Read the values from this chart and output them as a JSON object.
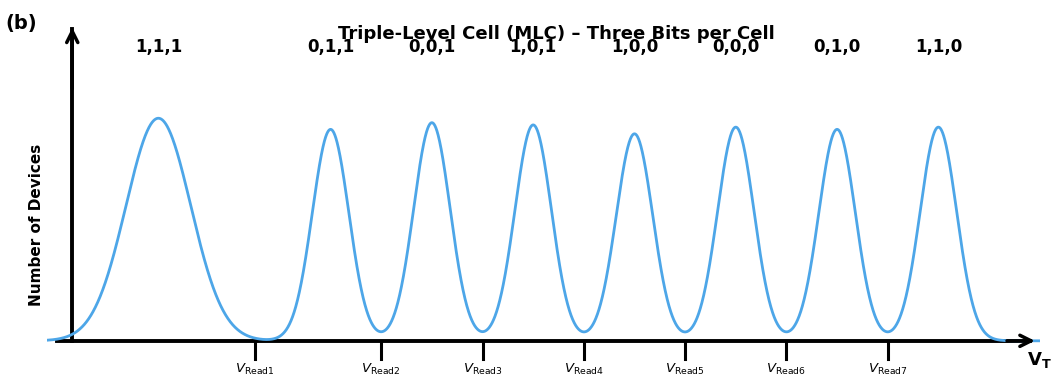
{
  "title": "Triple-Level Cell (MLC) – Three Bits per Cell",
  "ylabel": "Number of Devices",
  "xlabel": "V_T",
  "bit_labels": [
    "1,1,1",
    "0,1,1",
    "0,0,1",
    "1,0,1",
    "1,0,0",
    "0,0,0",
    "0,1,0",
    "1,1,0"
  ],
  "peak_centers": [
    1.5,
    3.2,
    4.2,
    5.2,
    6.2,
    7.2,
    8.2,
    9.2
  ],
  "peak_sigma": [
    0.32,
    0.18,
    0.18,
    0.18,
    0.18,
    0.18,
    0.18,
    0.18
  ],
  "peak_heights": [
    1.0,
    0.95,
    0.98,
    0.97,
    0.93,
    0.96,
    0.95,
    0.96
  ],
  "vread_positions": [
    2.45,
    3.7,
    4.7,
    5.7,
    6.7,
    7.7,
    8.7
  ],
  "vread_labels": [
    "V_{Read1}",
    "V_{Read2}",
    "V_{Read3}",
    "V_{Read4}",
    "V_{Read5}",
    "V_{Read6}",
    "V_{Read7}"
  ],
  "curve_color": "#4DA6E8",
  "title_color": "#000000",
  "label_color": "#000000",
  "background_color": "#ffffff",
  "xlim": [
    0.4,
    10.2
  ],
  "ylim": [
    -0.12,
    1.5
  ],
  "figsize": [
    10.59,
    3.85
  ],
  "dpi": 100,
  "label_b": "(b)"
}
